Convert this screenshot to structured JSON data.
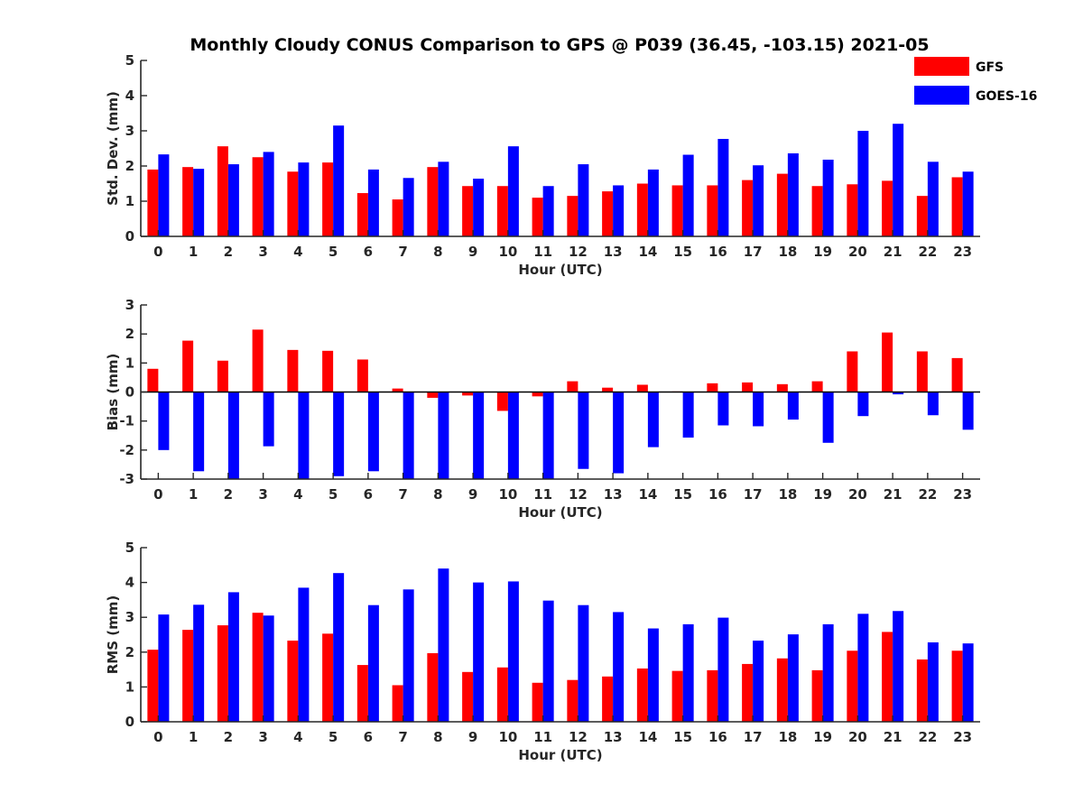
{
  "chart_title": "Monthly Cloudy CONUS Comparison to GPS @ P039 (36.45, -103.15) 2021-05",
  "legend": [
    {
      "name": "GFS",
      "color": "#ff0000"
    },
    {
      "name": "GOES-16",
      "color": "#0000ff"
    }
  ],
  "chart_data": [
    {
      "type": "bar",
      "title": "Monthly Cloudy CONUS Comparison to GPS @ P039 (36.45, -103.15) 2021-05",
      "xlabel": "Hour (UTC)",
      "ylabel": "Std. Dev. (mm)",
      "ylim": [
        0,
        5
      ],
      "yticks": [
        "0",
        "1",
        "2",
        "3",
        "4",
        "5"
      ],
      "categories": [
        "0",
        "1",
        "2",
        "3",
        "4",
        "5",
        "6",
        "7",
        "8",
        "9",
        "10",
        "11",
        "12",
        "13",
        "14",
        "15",
        "16",
        "17",
        "18",
        "19",
        "20",
        "21",
        "22",
        "23"
      ],
      "legend_position": "top-right",
      "series": [
        {
          "name": "GFS",
          "color": "#ff0000",
          "values": [
            1.9,
            1.97,
            2.56,
            2.25,
            1.84,
            2.1,
            1.23,
            1.05,
            1.97,
            1.43,
            1.43,
            1.1,
            1.15,
            1.28,
            1.5,
            1.45,
            1.45,
            1.6,
            1.78,
            1.43,
            1.48,
            1.58,
            1.15,
            1.68
          ]
        },
        {
          "name": "GOES-16",
          "color": "#0000ff",
          "values": [
            2.33,
            1.92,
            2.05,
            2.4,
            2.1,
            3.15,
            1.9,
            1.66,
            2.12,
            1.64,
            2.56,
            1.43,
            2.05,
            1.45,
            1.9,
            2.32,
            2.77,
            2.02,
            2.36,
            2.18,
            3.0,
            3.2,
            2.12,
            1.84
          ]
        }
      ]
    },
    {
      "type": "bar",
      "xlabel": "Hour (UTC)",
      "ylabel": "Bias (mm)",
      "ylim": [
        -3,
        3
      ],
      "yticks": [
        "-3",
        "-2",
        "-1",
        "0",
        "1",
        "2",
        "3"
      ],
      "categories": [
        "0",
        "1",
        "2",
        "3",
        "4",
        "5",
        "6",
        "7",
        "8",
        "9",
        "10",
        "11",
        "12",
        "13",
        "14",
        "15",
        "16",
        "17",
        "18",
        "19",
        "20",
        "21",
        "22",
        "23"
      ],
      "series": [
        {
          "name": "GFS",
          "color": "#ff0000",
          "values": [
            0.8,
            1.77,
            1.08,
            2.15,
            1.45,
            1.42,
            1.12,
            0.12,
            -0.2,
            -0.12,
            -0.65,
            -0.15,
            0.37,
            0.15,
            0.25,
            0.02,
            0.3,
            0.33,
            0.27,
            0.37,
            1.4,
            2.05,
            1.4,
            1.17
          ]
        },
        {
          "name": "GOES-16",
          "color": "#0000ff",
          "values": [
            -2.0,
            -2.73,
            -3.0,
            -1.87,
            -3.0,
            -2.9,
            -2.73,
            -3.0,
            -3.0,
            -3.0,
            -3.0,
            -3.0,
            -2.65,
            -2.8,
            -1.9,
            -1.57,
            -1.15,
            -1.18,
            -0.95,
            -1.75,
            -0.83,
            -0.08,
            -0.8,
            -1.3
          ]
        }
      ]
    },
    {
      "type": "bar",
      "xlabel": "Hour (UTC)",
      "ylabel": "RMS (mm)",
      "ylim": [
        0,
        5
      ],
      "yticks": [
        "0",
        "1",
        "2",
        "3",
        "4",
        "5"
      ],
      "categories": [
        "0",
        "1",
        "2",
        "3",
        "4",
        "5",
        "6",
        "7",
        "8",
        "9",
        "10",
        "11",
        "12",
        "13",
        "14",
        "15",
        "16",
        "17",
        "18",
        "19",
        "20",
        "21",
        "22",
        "23"
      ],
      "series": [
        {
          "name": "GFS",
          "color": "#ff0000",
          "values": [
            2.07,
            2.64,
            2.77,
            3.13,
            2.33,
            2.53,
            1.63,
            1.05,
            1.97,
            1.43,
            1.56,
            1.12,
            1.2,
            1.3,
            1.53,
            1.46,
            1.48,
            1.66,
            1.82,
            1.48,
            2.04,
            2.58,
            1.79,
            2.04
          ]
        },
        {
          "name": "GOES-16",
          "color": "#0000ff",
          "values": [
            3.08,
            3.36,
            3.72,
            3.05,
            3.85,
            4.27,
            3.35,
            3.8,
            4.4,
            4.0,
            4.03,
            3.48,
            3.35,
            3.15,
            2.68,
            2.8,
            2.99,
            2.33,
            2.51,
            2.8,
            3.1,
            3.18,
            2.28,
            2.25
          ]
        }
      ]
    }
  ]
}
